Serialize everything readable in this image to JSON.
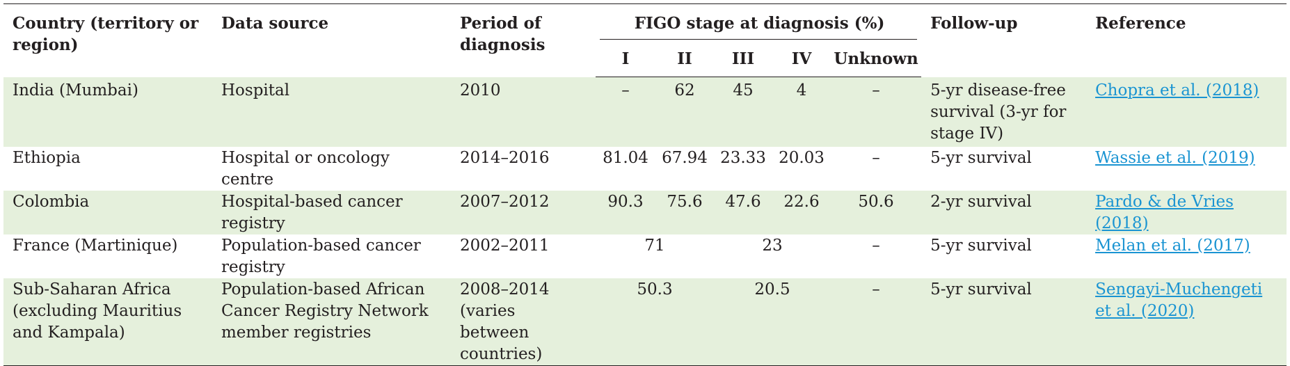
{
  "headers": {
    "country": "Country (territory or region)",
    "data_source": "Data source",
    "period": "Period of diagnosis",
    "figo_group": "FIGO stage at diagnosis (%)",
    "stage_i": "I",
    "stage_ii": "II",
    "stage_iii": "III",
    "stage_iv": "IV",
    "stage_unknown": "Unknown",
    "follow_up": "Follow-up",
    "reference": "Reference"
  },
  "rows": [
    {
      "country": "India (Mumbai)",
      "data_source": "Hospital",
      "period": "2010",
      "stage_i": "–",
      "stage_ii": "62",
      "stage_iii": "45",
      "stage_iv": "4",
      "stage_unknown": "–",
      "follow_up": "5-yr disease-free survival (3-yr for stage IV)",
      "reference": "Chopra et al. (2018)"
    },
    {
      "country": "Ethiopia",
      "data_source": "Hospital or oncology centre",
      "period": "2014–2016",
      "stage_i": "81.04",
      "stage_ii": "67.94",
      "stage_iii": "23.33",
      "stage_iv": "20.03",
      "stage_unknown": "–",
      "follow_up": "5-yr survival",
      "reference": "Wassie et al. (2019)"
    },
    {
      "country": "Colombia",
      "data_source": "Hospital-based cancer registry",
      "period": "2007–2012",
      "stage_i": "90.3",
      "stage_ii": "75.6",
      "stage_iii": "47.6",
      "stage_iv": "22.6",
      "stage_unknown": "50.6",
      "follow_up": "2-yr survival",
      "reference": "Pardo & de Vries (2018)"
    },
    {
      "country": "France (Martinique)",
      "data_source": "Population-based cancer registry",
      "period": "2002–2011",
      "stage_i_ii": "71",
      "stage_iii_iv": "23",
      "stage_unknown": "–",
      "follow_up": "5-yr survival",
      "reference": "Melan et al. (2017)"
    },
    {
      "country": "Sub-Saharan Africa (excluding Mauritius and Kampala)",
      "data_source": "Population-based African Cancer Registry Network member registries",
      "period": "2008–2014 (varies between countries)",
      "stage_i_ii": "50.3",
      "stage_iii_iv": "20.5",
      "stage_unknown": "–",
      "follow_up": "5-yr survival",
      "reference": "Sengayi-Muchengeti et al. (2020)"
    }
  ],
  "colors": {
    "row_shade": "#e5f0dc",
    "link": "#1a94d2",
    "text": "#231f20"
  }
}
